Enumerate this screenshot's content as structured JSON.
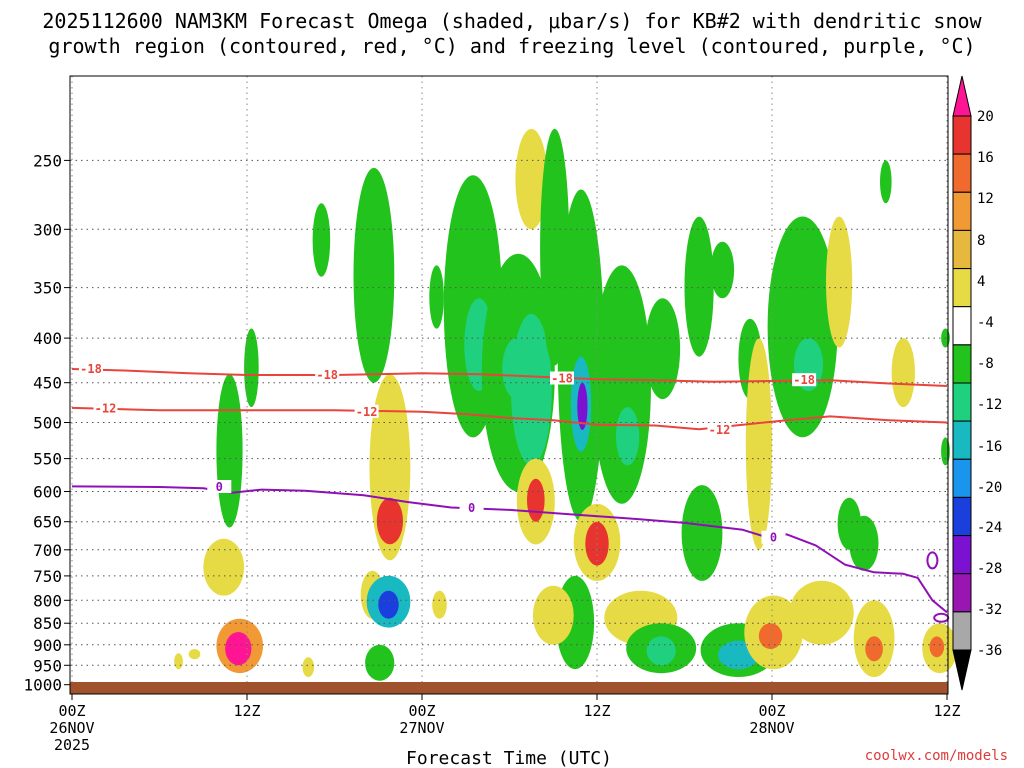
{
  "chart_data": {
    "type": "heatmap",
    "title_lines": [
      "2025112600 NAM3KM Forecast Omega (shaded, μbar/s) for KB#2 with dendritic snow",
      "growth region (contoured, red, °C) and freezing level (contoured, purple, °C)"
    ],
    "xlabel": "Forecast Time (UTC)",
    "x_hours_range": [
      0,
      60
    ],
    "x_ticks": [
      {
        "hour": 0,
        "lines": [
          "00Z",
          "26NOV",
          "2025"
        ]
      },
      {
        "hour": 12,
        "lines": [
          "12Z"
        ]
      },
      {
        "hour": 24,
        "lines": [
          "00Z",
          "27NOV"
        ]
      },
      {
        "hour": 36,
        "lines": [
          "12Z"
        ]
      },
      {
        "hour": 48,
        "lines": [
          "00Z",
          "28NOV"
        ]
      },
      {
        "hour": 60,
        "lines": [
          "12Z"
        ]
      }
    ],
    "y_ticks": [
      250,
      300,
      350,
      400,
      450,
      500,
      550,
      600,
      650,
      700,
      750,
      800,
      850,
      900,
      950,
      1000
    ],
    "y_range_hpa": [
      200,
      1025
    ],
    "y_scale": "log",
    "grid": "dotted",
    "ground_color": "#a0522d",
    "colorbar": {
      "labels": [
        "20",
        "16",
        "12",
        "8",
        "4",
        "-4",
        "-8",
        "-12",
        "-16",
        "-20",
        "-24",
        "-28",
        "-32",
        "-36"
      ],
      "colors": [
        "#ff1493",
        "#e8342e",
        "#ef6a2c",
        "#f19a35",
        "#e6b83d",
        "#e6db45",
        "#ffffff",
        "#22c31c",
        "#1fd07e",
        "#19b9c2",
        "#1a95ee",
        "#1b3fdd",
        "#7b12d2",
        "#9a16b3",
        "#a8a8a8",
        "#000000"
      ]
    },
    "contours": [
      {
        "name": "-18",
        "color": "#e8453c",
        "points": [
          [
            0,
            434
          ],
          [
            4,
            436
          ],
          [
            8,
            439
          ],
          [
            12,
            441
          ],
          [
            18,
            441
          ],
          [
            24,
            439
          ],
          [
            28,
            440
          ],
          [
            32,
            443
          ],
          [
            36,
            446
          ],
          [
            40,
            447
          ],
          [
            44,
            449
          ],
          [
            48,
            448
          ],
          [
            52,
            447
          ],
          [
            56,
            451
          ],
          [
            60,
            454
          ]
        ]
      },
      {
        "name": "-12",
        "color": "#e8453c",
        "points": [
          [
            0,
            481
          ],
          [
            6,
            484
          ],
          [
            12,
            484
          ],
          [
            18,
            484
          ],
          [
            24,
            486
          ],
          [
            27,
            489
          ],
          [
            30,
            494
          ],
          [
            33,
            497
          ],
          [
            36,
            503
          ],
          [
            40,
            504
          ],
          [
            43,
            509
          ],
          [
            46,
            503
          ],
          [
            49,
            497
          ],
          [
            52,
            492
          ],
          [
            56,
            497
          ],
          [
            60,
            500
          ]
        ]
      },
      {
        "name": "0",
        "color": "#9010b8",
        "points": [
          [
            0,
            592
          ],
          [
            6,
            593
          ],
          [
            9,
            595
          ],
          [
            11,
            602
          ],
          [
            13,
            597
          ],
          [
            16,
            599
          ],
          [
            20,
            606
          ],
          [
            23,
            617
          ],
          [
            26,
            626
          ],
          [
            30,
            630
          ],
          [
            34,
            637
          ],
          [
            38,
            644
          ],
          [
            42,
            652
          ],
          [
            46,
            664
          ],
          [
            48,
            680
          ],
          [
            49,
            672
          ],
          [
            51,
            692
          ],
          [
            53,
            728
          ],
          [
            55,
            743
          ],
          [
            57,
            746
          ],
          [
            58,
            754
          ],
          [
            59,
            800
          ],
          [
            60,
            826
          ]
        ]
      }
    ],
    "contour_labels": [
      {
        "text": "-18",
        "hour": 1.3,
        "p": 434,
        "color": "#e8453c"
      },
      {
        "text": "-18",
        "hour": 17.5,
        "p": 441,
        "color": "#e8453c"
      },
      {
        "text": "-18",
        "hour": 33.6,
        "p": 445,
        "color": "#e8453c"
      },
      {
        "text": "-18",
        "hour": 50.2,
        "p": 447,
        "color": "#e8453c"
      },
      {
        "text": "-12",
        "hour": 2.3,
        "p": 482,
        "color": "#e8453c"
      },
      {
        "text": "-12",
        "hour": 20.2,
        "p": 486,
        "color": "#e8453c"
      },
      {
        "text": "-12",
        "hour": 44.4,
        "p": 510,
        "color": "#e8453c"
      },
      {
        "text": "0",
        "hour": 10.1,
        "p": 593,
        "color": "#9010b8"
      },
      {
        "text": "0",
        "hour": 27.4,
        "p": 627,
        "color": "#9010b8"
      },
      {
        "text": "0",
        "hour": 48.1,
        "p": 678,
        "color": "#9010b8"
      }
    ],
    "shaded_cells": [
      {
        "hour": 11.5,
        "p1": 840,
        "p2": 970,
        "w": 1.6,
        "v": 8
      },
      {
        "hour": 11.4,
        "p1": 870,
        "p2": 950,
        "w": 0.9,
        "v": 20
      },
      {
        "hour": 10.4,
        "p1": 680,
        "p2": 790,
        "w": 1.4,
        "v": 4
      },
      {
        "hour": 10.8,
        "p1": 440,
        "p2": 660,
        "w": 0.9,
        "v": -4
      },
      {
        "hour": 12.3,
        "p1": 390,
        "p2": 480,
        "w": 0.5,
        "v": -4
      },
      {
        "hour": 17.1,
        "p1": 280,
        "p2": 340,
        "w": 0.6,
        "v": -4
      },
      {
        "hour": 20.7,
        "p1": 255,
        "p2": 450,
        "w": 1.4,
        "v": -4
      },
      {
        "hour": 21.8,
        "p1": 440,
        "p2": 720,
        "w": 1.4,
        "v": 4
      },
      {
        "hour": 21.8,
        "p1": 610,
        "p2": 690,
        "w": 0.9,
        "v": 16
      },
      {
        "hour": 20.6,
        "p1": 740,
        "p2": 840,
        "w": 0.8,
        "v": 4
      },
      {
        "hour": 21.7,
        "p1": 750,
        "p2": 860,
        "w": 1.5,
        "v": -12
      },
      {
        "hour": 21.7,
        "p1": 780,
        "p2": 840,
        "w": 0.7,
        "v": -20
      },
      {
        "hour": 21.1,
        "p1": 900,
        "p2": 990,
        "w": 1.0,
        "v": -4
      },
      {
        "hour": 25.0,
        "p1": 330,
        "p2": 390,
        "w": 0.5,
        "v": -4
      },
      {
        "hour": 27.5,
        "p1": 260,
        "p2": 520,
        "w": 2.0,
        "v": -4
      },
      {
        "hour": 27.9,
        "p1": 360,
        "p2": 460,
        "w": 1.0,
        "v": -8
      },
      {
        "hour": 30.6,
        "p1": 320,
        "p2": 600,
        "w": 2.5,
        "v": -4
      },
      {
        "hour": 30.5,
        "p1": 400,
        "p2": 470,
        "w": 1.0,
        "v": -8
      },
      {
        "hour": 31.5,
        "p1": 375,
        "p2": 560,
        "w": 1.4,
        "v": -8
      },
      {
        "hour": 31.8,
        "p1": 550,
        "p2": 690,
        "w": 1.3,
        "v": 4
      },
      {
        "hour": 31.8,
        "p1": 580,
        "p2": 650,
        "w": 0.6,
        "v": 16
      },
      {
        "hour": 31.5,
        "p1": 230,
        "p2": 300,
        "w": 1.1,
        "v": 4
      },
      {
        "hour": 33.1,
        "p1": 230,
        "p2": 430,
        "w": 1.0,
        "v": -4
      },
      {
        "hour": 34.9,
        "p1": 270,
        "p2": 650,
        "w": 1.6,
        "v": -4
      },
      {
        "hour": 34.9,
        "p1": 420,
        "p2": 540,
        "w": 0.7,
        "v": -12
      },
      {
        "hour": 35.0,
        "p1": 450,
        "p2": 510,
        "w": 0.35,
        "v": -24
      },
      {
        "hour": 34.5,
        "p1": 750,
        "p2": 960,
        "w": 1.3,
        "v": -4
      },
      {
        "hour": 33.0,
        "p1": 770,
        "p2": 900,
        "w": 1.4,
        "v": 4
      },
      {
        "hour": 36.0,
        "p1": 620,
        "p2": 760,
        "w": 1.6,
        "v": 4
      },
      {
        "hour": 36.0,
        "p1": 650,
        "p2": 730,
        "w": 0.8,
        "v": 16
      },
      {
        "hour": 37.7,
        "p1": 330,
        "p2": 620,
        "w": 2.0,
        "v": -4
      },
      {
        "hour": 38.1,
        "p1": 480,
        "p2": 560,
        "w": 0.8,
        "v": -8
      },
      {
        "hour": 40.5,
        "p1": 360,
        "p2": 470,
        "w": 1.2,
        "v": -4
      },
      {
        "hour": 39.0,
        "p1": 780,
        "p2": 900,
        "w": 2.5,
        "v": 4
      },
      {
        "hour": 40.4,
        "p1": 850,
        "p2": 970,
        "w": 2.4,
        "v": -4
      },
      {
        "hour": 40.4,
        "p1": 880,
        "p2": 950,
        "w": 1.0,
        "v": -8
      },
      {
        "hour": 43.2,
        "p1": 590,
        "p2": 760,
        "w": 1.4,
        "v": -4
      },
      {
        "hour": 43.0,
        "p1": 290,
        "p2": 420,
        "w": 1.0,
        "v": -4
      },
      {
        "hour": 44.6,
        "p1": 310,
        "p2": 360,
        "w": 0.8,
        "v": -4
      },
      {
        "hour": 45.7,
        "p1": 850,
        "p2": 980,
        "w": 2.6,
        "v": -4
      },
      {
        "hour": 45.7,
        "p1": 890,
        "p2": 960,
        "w": 1.4,
        "v": -12
      },
      {
        "hour": 46.5,
        "p1": 380,
        "p2": 470,
        "w": 0.8,
        "v": -4
      },
      {
        "hour": 47.1,
        "p1": 400,
        "p2": 700,
        "w": 0.9,
        "v": 4
      },
      {
        "hour": 48.1,
        "p1": 790,
        "p2": 960,
        "w": 2.0,
        "v": 4
      },
      {
        "hour": 47.9,
        "p1": 850,
        "p2": 910,
        "w": 0.8,
        "v": 12
      },
      {
        "hour": 50.1,
        "p1": 290,
        "p2": 520,
        "w": 2.4,
        "v": -4
      },
      {
        "hour": 50.5,
        "p1": 400,
        "p2": 460,
        "w": 1.0,
        "v": -8
      },
      {
        "hour": 52.6,
        "p1": 290,
        "p2": 410,
        "w": 0.9,
        "v": 4
      },
      {
        "hour": 51.4,
        "p1": 760,
        "p2": 900,
        "w": 2.2,
        "v": 4
      },
      {
        "hour": 53.3,
        "p1": 610,
        "p2": 700,
        "w": 0.8,
        "v": -4
      },
      {
        "hour": 54.3,
        "p1": 640,
        "p2": 740,
        "w": 1.0,
        "v": -4
      },
      {
        "hour": 55.0,
        "p1": 800,
        "p2": 980,
        "w": 1.4,
        "v": 4
      },
      {
        "hour": 55.0,
        "p1": 880,
        "p2": 940,
        "w": 0.6,
        "v": 12
      },
      {
        "hour": 55.8,
        "p1": 250,
        "p2": 280,
        "w": 0.4,
        "v": -4
      },
      {
        "hour": 57.0,
        "p1": 400,
        "p2": 480,
        "w": 0.8,
        "v": 4
      },
      {
        "hour": 59.5,
        "p1": 850,
        "p2": 970,
        "w": 1.2,
        "v": 4
      },
      {
        "hour": 59.3,
        "p1": 880,
        "p2": 930,
        "w": 0.5,
        "v": 12
      },
      {
        "hour": 59.9,
        "p1": 390,
        "p2": 410,
        "w": 0.3,
        "v": -4
      },
      {
        "hour": 59.9,
        "p1": 520,
        "p2": 560,
        "w": 0.3,
        "v": -4
      },
      {
        "hour": 8.4,
        "p1": 910,
        "p2": 935,
        "w": 0.4,
        "v": 4
      },
      {
        "hour": 7.3,
        "p1": 920,
        "p2": 960,
        "w": 0.3,
        "v": 4
      },
      {
        "hour": 16.2,
        "p1": 930,
        "p2": 980,
        "w": 0.4,
        "v": 4
      },
      {
        "hour": 25.2,
        "p1": 780,
        "p2": 840,
        "w": 0.5,
        "v": 4
      }
    ]
  },
  "credit": "coolwx.com/models"
}
